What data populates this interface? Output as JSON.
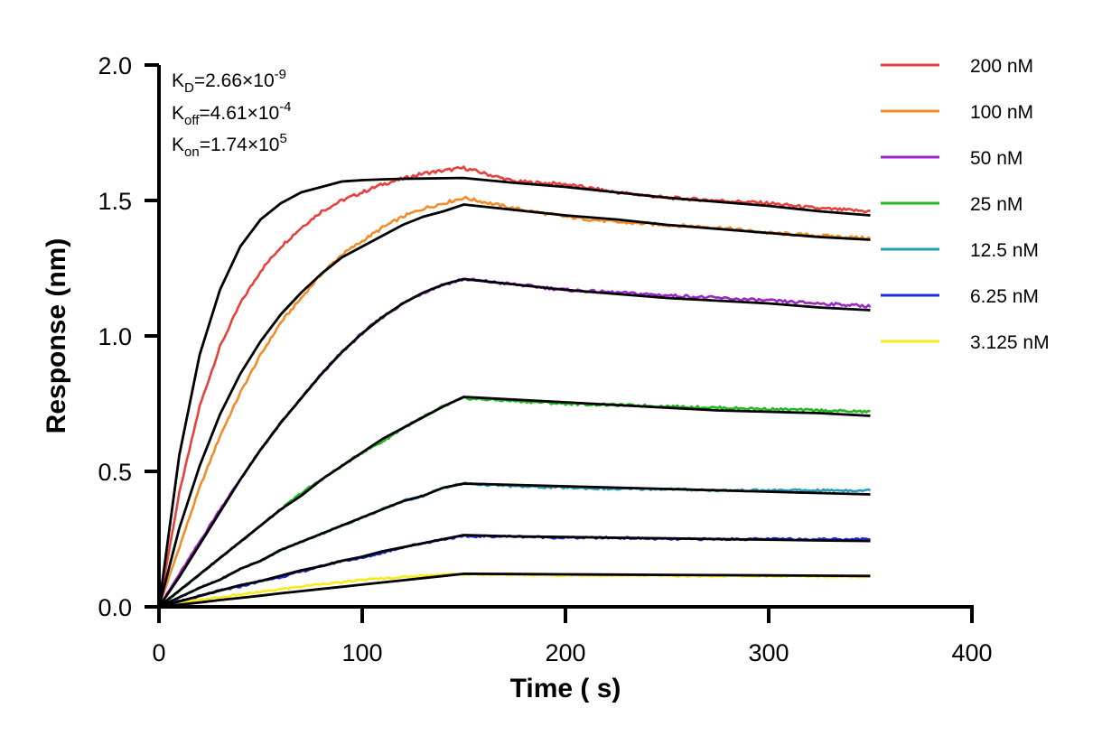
{
  "chart_data": {
    "type": "line",
    "title": "",
    "xlabel": "Time ( s)",
    "ylabel": "Response (nm)",
    "xlim": [
      0,
      400
    ],
    "ylim": [
      0.0,
      2.0
    ],
    "x_ticks": [
      "0",
      "100",
      "200",
      "300",
      "400"
    ],
    "y_ticks": [
      "0.0",
      "0.5",
      "1.0",
      "1.5",
      "2.0"
    ],
    "grid": false,
    "legend_position": "top-right",
    "annotations": {
      "kd": {
        "base": "K",
        "sub": "D",
        "value": "=2.66×10",
        "exp": "-9"
      },
      "koff": {
        "base": "K",
        "sub": "off",
        "value": "=4.61×10",
        "exp": "-4"
      },
      "kon": {
        "base": "K",
        "sub": "on",
        "value": "=1.74×10",
        "exp": "5"
      }
    },
    "fit_line_color": "#000000",
    "kinetics": {
      "association_end_s": 150,
      "dissociation_end_s": 350
    },
    "series": [
      {
        "name": "200 nM",
        "color": "#E8403A",
        "x": [
          0,
          10,
          20,
          30,
          40,
          50,
          60,
          70,
          80,
          90,
          100,
          110,
          120,
          130,
          140,
          150,
          175,
          200,
          225,
          250,
          275,
          300,
          325,
          350
        ],
        "y": [
          0,
          0.42,
          0.74,
          0.96,
          1.12,
          1.24,
          1.33,
          1.4,
          1.46,
          1.5,
          1.53,
          1.56,
          1.58,
          1.6,
          1.61,
          1.62,
          1.57,
          1.56,
          1.53,
          1.51,
          1.5,
          1.49,
          1.47,
          1.46
        ],
        "fit": [
          0,
          0.56,
          0.93,
          1.17,
          1.33,
          1.43,
          1.49,
          1.53,
          1.55,
          1.57,
          1.575,
          1.578,
          1.58,
          1.581,
          1.582,
          1.583,
          1.565,
          1.55,
          1.53,
          1.51,
          1.495,
          1.48,
          1.46,
          1.445
        ]
      },
      {
        "name": "100 nM",
        "color": "#F28C28",
        "x": [
          0,
          10,
          20,
          30,
          40,
          50,
          60,
          70,
          80,
          90,
          100,
          110,
          120,
          130,
          140,
          150,
          175,
          200,
          225,
          250,
          275,
          300,
          325,
          350
        ],
        "y": [
          0,
          0.22,
          0.44,
          0.63,
          0.79,
          0.93,
          1.05,
          1.14,
          1.23,
          1.3,
          1.35,
          1.4,
          1.44,
          1.47,
          1.49,
          1.51,
          1.47,
          1.44,
          1.42,
          1.41,
          1.4,
          1.38,
          1.37,
          1.36
        ],
        "fit": [
          0,
          0.29,
          0.52,
          0.71,
          0.86,
          0.98,
          1.08,
          1.16,
          1.23,
          1.29,
          1.33,
          1.37,
          1.41,
          1.44,
          1.46,
          1.485,
          1.465,
          1.445,
          1.43,
          1.41,
          1.395,
          1.38,
          1.365,
          1.355
        ]
      },
      {
        "name": "50 nM",
        "color": "#9B26C8",
        "x": [
          0,
          10,
          20,
          30,
          40,
          50,
          60,
          70,
          80,
          90,
          100,
          110,
          120,
          130,
          140,
          150,
          175,
          200,
          225,
          250,
          275,
          300,
          325,
          350
        ],
        "y": [
          0,
          0.12,
          0.24,
          0.36,
          0.47,
          0.58,
          0.68,
          0.77,
          0.86,
          0.94,
          1.01,
          1.07,
          1.12,
          1.16,
          1.19,
          1.21,
          1.19,
          1.17,
          1.16,
          1.15,
          1.14,
          1.13,
          1.12,
          1.11
        ],
        "fit": [
          0,
          0.11,
          0.23,
          0.35,
          0.47,
          0.58,
          0.68,
          0.77,
          0.86,
          0.94,
          1.01,
          1.07,
          1.12,
          1.16,
          1.19,
          1.21,
          1.19,
          1.17,
          1.155,
          1.14,
          1.13,
          1.12,
          1.105,
          1.095
        ]
      },
      {
        "name": "25 nM",
        "color": "#22B822",
        "x": [
          0,
          10,
          20,
          30,
          40,
          50,
          60,
          70,
          80,
          90,
          100,
          110,
          120,
          130,
          140,
          150,
          175,
          200,
          225,
          250,
          275,
          300,
          325,
          350
        ],
        "y": [
          0,
          0.06,
          0.12,
          0.18,
          0.24,
          0.3,
          0.36,
          0.42,
          0.47,
          0.52,
          0.57,
          0.61,
          0.66,
          0.7,
          0.74,
          0.77,
          0.76,
          0.75,
          0.745,
          0.74,
          0.735,
          0.73,
          0.725,
          0.72
        ],
        "fit": [
          0,
          0.06,
          0.12,
          0.18,
          0.24,
          0.3,
          0.36,
          0.41,
          0.47,
          0.52,
          0.57,
          0.62,
          0.66,
          0.7,
          0.74,
          0.775,
          0.765,
          0.755,
          0.745,
          0.735,
          0.725,
          0.72,
          0.715,
          0.705
        ]
      },
      {
        "name": "12.5 nM",
        "color": "#2A9CB5",
        "x": [
          0,
          10,
          20,
          30,
          40,
          50,
          60,
          70,
          80,
          90,
          100,
          110,
          120,
          130,
          140,
          150,
          175,
          200,
          225,
          250,
          275,
          300,
          325,
          350
        ],
        "y": [
          0,
          0.035,
          0.07,
          0.1,
          0.14,
          0.17,
          0.21,
          0.24,
          0.27,
          0.3,
          0.33,
          0.36,
          0.39,
          0.41,
          0.44,
          0.455,
          0.445,
          0.44,
          0.435,
          0.435,
          0.43,
          0.43,
          0.43,
          0.43
        ],
        "fit": [
          0,
          0.035,
          0.07,
          0.1,
          0.14,
          0.17,
          0.21,
          0.24,
          0.27,
          0.3,
          0.33,
          0.36,
          0.39,
          0.41,
          0.44,
          0.455,
          0.45,
          0.445,
          0.44,
          0.435,
          0.43,
          0.425,
          0.42,
          0.415
        ]
      },
      {
        "name": "6.25 nM",
        "color": "#1E2BD6",
        "x": [
          0,
          10,
          20,
          30,
          40,
          50,
          60,
          70,
          80,
          90,
          100,
          110,
          120,
          130,
          140,
          150,
          175,
          200,
          225,
          250,
          275,
          300,
          325,
          350
        ],
        "y": [
          0,
          0.02,
          0.04,
          0.06,
          0.075,
          0.095,
          0.11,
          0.13,
          0.15,
          0.17,
          0.18,
          0.2,
          0.22,
          0.235,
          0.25,
          0.26,
          0.26,
          0.255,
          0.255,
          0.25,
          0.25,
          0.25,
          0.25,
          0.25
        ],
        "fit": [
          0,
          0.02,
          0.04,
          0.06,
          0.08,
          0.095,
          0.115,
          0.135,
          0.15,
          0.17,
          0.185,
          0.205,
          0.22,
          0.235,
          0.25,
          0.265,
          0.26,
          0.258,
          0.255,
          0.253,
          0.25,
          0.248,
          0.245,
          0.243
        ]
      },
      {
        "name": "3.125 nM",
        "color": "#F7EB1C",
        "x": [
          0,
          10,
          20,
          30,
          40,
          50,
          60,
          70,
          80,
          90,
          100,
          110,
          120,
          130,
          140,
          150,
          175,
          200,
          225,
          250,
          275,
          300,
          325,
          350
        ],
        "y": [
          0,
          0.015,
          0.025,
          0.035,
          0.045,
          0.055,
          0.065,
          0.075,
          0.085,
          0.09,
          0.1,
          0.105,
          0.11,
          0.115,
          0.12,
          0.12,
          0.118,
          0.117,
          0.116,
          0.115,
          0.114,
          0.113,
          0.112,
          0.112
        ],
        "fit": [
          0,
          0.008,
          0.016,
          0.025,
          0.033,
          0.041,
          0.05,
          0.058,
          0.066,
          0.074,
          0.082,
          0.09,
          0.098,
          0.106,
          0.114,
          0.122,
          0.121,
          0.12,
          0.119,
          0.118,
          0.117,
          0.116,
          0.115,
          0.114
        ]
      }
    ]
  }
}
